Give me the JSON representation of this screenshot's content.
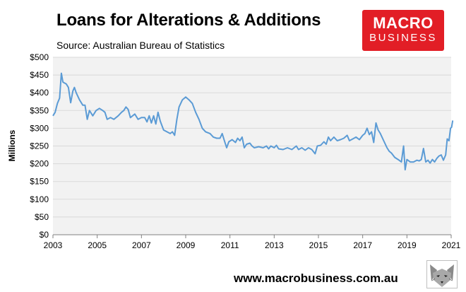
{
  "title": "Loans for Alterations & Additions",
  "subtitle": "Source: Australian Bureau of Statistics",
  "logo": {
    "line1": "MACRO",
    "line2": "BUSINESS"
  },
  "footer": "www.macrobusiness.com.au",
  "colors": {
    "line": "#5b9bd5",
    "plot_bg": "#f2f2f2",
    "grid": "#d9d9d9",
    "logo_bg": "#e21e26"
  },
  "chart_data": {
    "type": "line",
    "title": "Loans for Alterations & Additions",
    "subtitle": "Source: Australian Bureau of Statistics",
    "xlabel": "",
    "ylabel": "Millions",
    "xlim": [
      2003,
      2021
    ],
    "ylim": [
      0,
      500
    ],
    "grid": true,
    "legend": "none",
    "x_ticks": [
      "2003",
      "2005",
      "2007",
      "2009",
      "2011",
      "2013",
      "2015",
      "2017",
      "2019",
      "2021"
    ],
    "y_ticks": [
      "$0",
      "$50",
      "$100",
      "$150",
      "$200",
      "$250",
      "$300",
      "$350",
      "$400",
      "$450",
      "$500"
    ],
    "series": [
      {
        "values": [
          [
            2003.0,
            335
          ],
          [
            2003.1,
            345
          ],
          [
            2003.2,
            370
          ],
          [
            2003.3,
            385
          ],
          [
            2003.38,
            455
          ],
          [
            2003.45,
            430
          ],
          [
            2003.6,
            425
          ],
          [
            2003.7,
            415
          ],
          [
            2003.8,
            372
          ],
          [
            2003.9,
            405
          ],
          [
            2003.97,
            415
          ],
          [
            2004.05,
            400
          ],
          [
            2004.2,
            380
          ],
          [
            2004.35,
            365
          ],
          [
            2004.45,
            365
          ],
          [
            2004.55,
            325
          ],
          [
            2004.65,
            350
          ],
          [
            2004.8,
            335
          ],
          [
            2004.95,
            350
          ],
          [
            2005.1,
            356
          ],
          [
            2005.25,
            350
          ],
          [
            2005.35,
            345
          ],
          [
            2005.45,
            325
          ],
          [
            2005.6,
            330
          ],
          [
            2005.75,
            325
          ],
          [
            2005.95,
            335
          ],
          [
            2006.1,
            345
          ],
          [
            2006.2,
            350
          ],
          [
            2006.3,
            360
          ],
          [
            2006.4,
            353
          ],
          [
            2006.5,
            330
          ],
          [
            2006.7,
            340
          ],
          [
            2006.85,
            325
          ],
          [
            2007.0,
            330
          ],
          [
            2007.15,
            330
          ],
          [
            2007.25,
            318
          ],
          [
            2007.35,
            335
          ],
          [
            2007.45,
            315
          ],
          [
            2007.55,
            335
          ],
          [
            2007.65,
            312
          ],
          [
            2007.75,
            345
          ],
          [
            2007.85,
            320
          ],
          [
            2008.0,
            295
          ],
          [
            2008.15,
            290
          ],
          [
            2008.3,
            285
          ],
          [
            2008.4,
            290
          ],
          [
            2008.5,
            280
          ],
          [
            2008.6,
            325
          ],
          [
            2008.7,
            360
          ],
          [
            2008.85,
            380
          ],
          [
            2009.0,
            388
          ],
          [
            2009.15,
            380
          ],
          [
            2009.3,
            370
          ],
          [
            2009.45,
            345
          ],
          [
            2009.6,
            325
          ],
          [
            2009.75,
            300
          ],
          [
            2009.9,
            290
          ],
          [
            2010.1,
            285
          ],
          [
            2010.25,
            275
          ],
          [
            2010.4,
            272
          ],
          [
            2010.55,
            272
          ],
          [
            2010.65,
            285
          ],
          [
            2010.75,
            265
          ],
          [
            2010.85,
            245
          ],
          [
            2010.95,
            262
          ],
          [
            2011.1,
            268
          ],
          [
            2011.25,
            260
          ],
          [
            2011.35,
            272
          ],
          [
            2011.45,
            265
          ],
          [
            2011.55,
            275
          ],
          [
            2011.65,
            245
          ],
          [
            2011.75,
            255
          ],
          [
            2011.9,
            258
          ],
          [
            2012.0,
            250
          ],
          [
            2012.1,
            245
          ],
          [
            2012.3,
            248
          ],
          [
            2012.5,
            245
          ],
          [
            2012.65,
            250
          ],
          [
            2012.75,
            242
          ],
          [
            2012.85,
            250
          ],
          [
            2013.0,
            245
          ],
          [
            2013.1,
            252
          ],
          [
            2013.2,
            242
          ],
          [
            2013.4,
            240
          ],
          [
            2013.6,
            245
          ],
          [
            2013.8,
            240
          ],
          [
            2014.0,
            250
          ],
          [
            2014.1,
            240
          ],
          [
            2014.25,
            245
          ],
          [
            2014.4,
            238
          ],
          [
            2014.55,
            245
          ],
          [
            2014.7,
            240
          ],
          [
            2014.85,
            228
          ],
          [
            2014.95,
            250
          ],
          [
            2015.1,
            252
          ],
          [
            2015.25,
            262
          ],
          [
            2015.35,
            255
          ],
          [
            2015.45,
            275
          ],
          [
            2015.55,
            265
          ],
          [
            2015.7,
            275
          ],
          [
            2015.85,
            265
          ],
          [
            2016.0,
            268
          ],
          [
            2016.15,
            272
          ],
          [
            2016.3,
            280
          ],
          [
            2016.4,
            265
          ],
          [
            2016.55,
            270
          ],
          [
            2016.7,
            275
          ],
          [
            2016.85,
            268
          ],
          [
            2017.0,
            280
          ],
          [
            2017.1,
            285
          ],
          [
            2017.2,
            300
          ],
          [
            2017.3,
            282
          ],
          [
            2017.4,
            290
          ],
          [
            2017.5,
            260
          ],
          [
            2017.6,
            315
          ],
          [
            2017.7,
            295
          ],
          [
            2017.8,
            285
          ],
          [
            2017.95,
            265
          ],
          [
            2018.1,
            245
          ],
          [
            2018.2,
            235
          ],
          [
            2018.3,
            230
          ],
          [
            2018.45,
            218
          ],
          [
            2018.6,
            212
          ],
          [
            2018.75,
            205
          ],
          [
            2018.85,
            250
          ],
          [
            2018.92,
            183
          ],
          [
            2019.0,
            212
          ],
          [
            2019.15,
            205
          ],
          [
            2019.3,
            205
          ],
          [
            2019.45,
            210
          ],
          [
            2019.55,
            208
          ],
          [
            2019.65,
            212
          ],
          [
            2019.75,
            243
          ],
          [
            2019.85,
            205
          ],
          [
            2019.95,
            210
          ],
          [
            2020.05,
            202
          ],
          [
            2020.15,
            212
          ],
          [
            2020.25,
            205
          ],
          [
            2020.35,
            215
          ],
          [
            2020.45,
            222
          ],
          [
            2020.55,
            225
          ],
          [
            2020.65,
            210
          ],
          [
            2020.75,
            225
          ],
          [
            2020.82,
            270
          ],
          [
            2020.9,
            265
          ],
          [
            2020.97,
            300
          ],
          [
            2021.02,
            303
          ],
          [
            2021.07,
            322
          ]
        ]
      }
    ]
  }
}
